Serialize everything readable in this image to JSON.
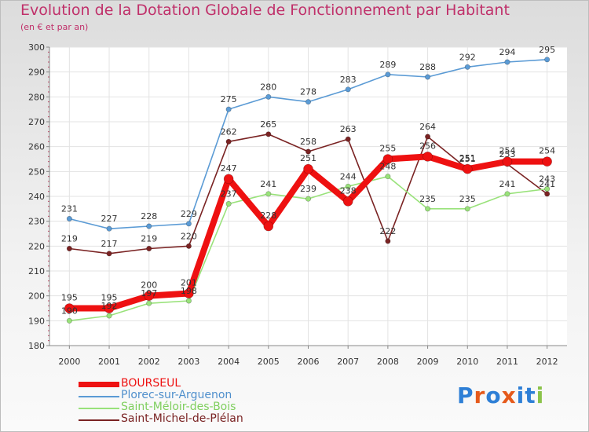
{
  "chart_data": {
    "type": "line",
    "title": "Evolution de la Dotation Globale de Fonctionnement par Habitant",
    "subtitle": "(en € et par an)",
    "xlabel": "",
    "ylabel": "",
    "ylim": [
      180,
      300
    ],
    "yticks": [
      180,
      190,
      200,
      210,
      220,
      230,
      240,
      250,
      260,
      270,
      280,
      290,
      300
    ],
    "categories": [
      "2000",
      "2001",
      "2002",
      "2003",
      "2004",
      "2005",
      "2006",
      "2007",
      "2008",
      "2009",
      "2010",
      "2011",
      "2012"
    ],
    "legend_position": "bottom-left",
    "series": [
      {
        "name": "Plorec-sur-Arguenon",
        "color": "#5b9bd5",
        "values": [
          231,
          227,
          228,
          229,
          275,
          280,
          278,
          283,
          289,
          288,
          292,
          294,
          295
        ]
      },
      {
        "name": "Saint-Michel-de-Plélan",
        "color": "#7a2323",
        "values": [
          219,
          217,
          219,
          220,
          262,
          265,
          258,
          263,
          222,
          264,
          251,
          253,
          241
        ]
      },
      {
        "name": "Saint-Méloir-des-Bois",
        "color": "#99e27a",
        "values": [
          190,
          192,
          197,
          198,
          237,
          241,
          239,
          244,
          248,
          235,
          235,
          241,
          243
        ]
      },
      {
        "name": "BOURSEUL",
        "color": "#ee1111",
        "values": [
          195,
          195,
          200,
          201,
          247,
          228,
          251,
          238,
          255,
          256,
          251,
          254,
          254
        ]
      }
    ],
    "legend_order": [
      "BOURSEUL",
      "Plorec-sur-Arguenon",
      "Saint-Méloir-des-Bois",
      "Saint-Michel-de-Plélan"
    ]
  },
  "logo": {
    "text": "Proxiti",
    "letters": [
      "P",
      "r",
      "o",
      "x",
      "i",
      "t",
      "i"
    ],
    "colors": [
      "#2e7fd6",
      "#e55a1b",
      "#2e7fd6",
      "#e55a1b",
      "#2e7fd6",
      "#2e7fd6",
      "#8bc34a"
    ]
  }
}
